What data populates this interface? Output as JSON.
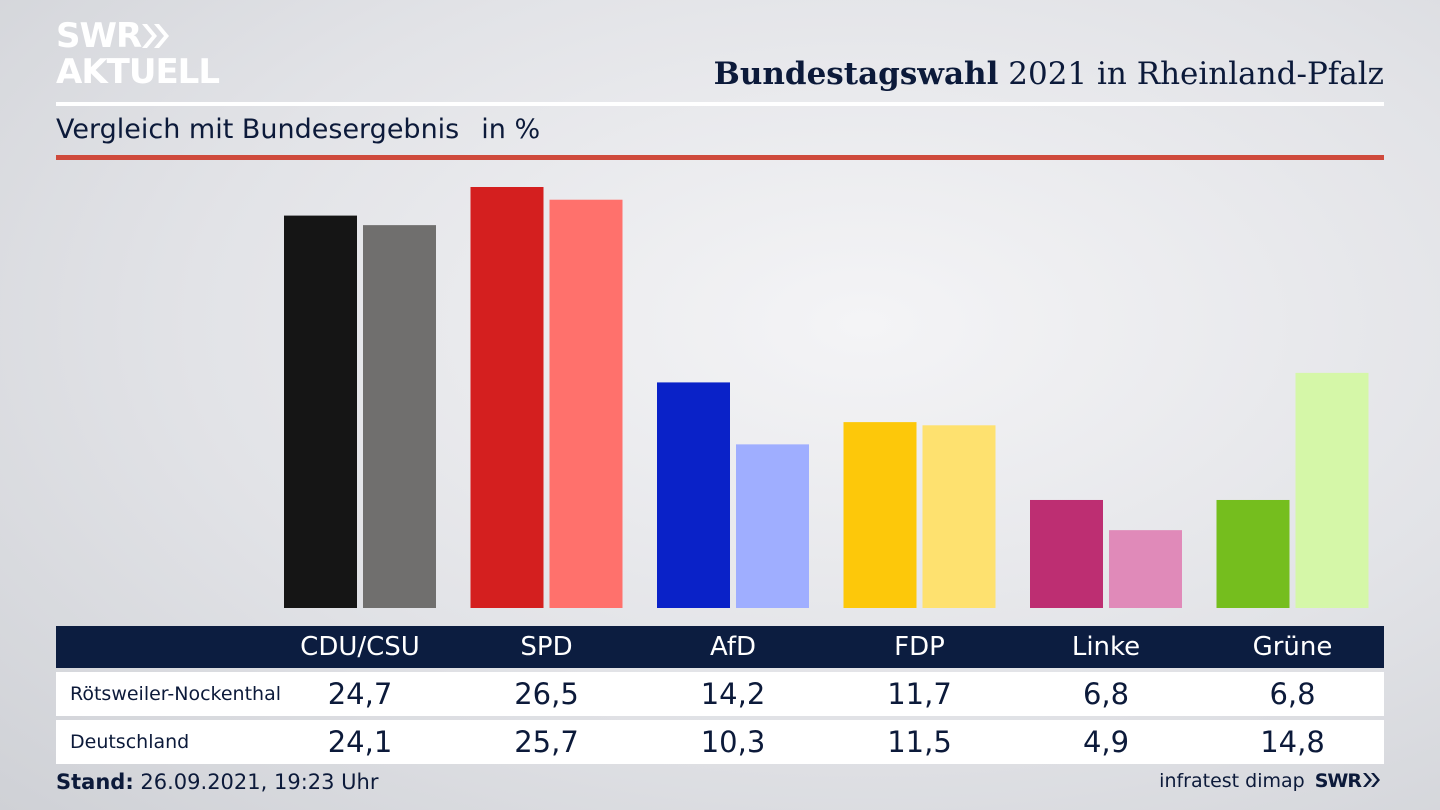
{
  "header": {
    "logo_line1": "SWR",
    "logo_line2": "AKTUELL",
    "title_bold": "Bundestagswahl",
    "title_rest": " 2021 in Rheinland-Pfalz",
    "subtitle": "Vergleich mit Bundesergebnis",
    "unit": "in %"
  },
  "colors": {
    "header_bar": "#0c1d40",
    "accent_red": "#cf4a3c"
  },
  "chart_data": {
    "type": "bar",
    "title": "Bundestagswahl 2021 in Rheinland-Pfalz",
    "subtitle": "Vergleich mit Bundesergebnis in %",
    "categories": [
      "CDU/CSU",
      "SPD",
      "AfD",
      "FDP",
      "Linke",
      "Grüne"
    ],
    "series": [
      {
        "name": "Rötsweiler-Nockenthal",
        "values": [
          24.7,
          26.5,
          14.2,
          11.7,
          6.8,
          6.8
        ],
        "colors": [
          "#151515",
          "#d41f1f",
          "#0a22c8",
          "#fdc80a",
          "#bd2e72",
          "#75be1e"
        ]
      },
      {
        "name": "Deutschland",
        "values": [
          24.1,
          25.7,
          10.3,
          11.5,
          4.9,
          14.8
        ],
        "colors": [
          "#706f6e",
          "#ff716c",
          "#9faeff",
          "#fee16f",
          "#e08ab9",
          "#d5f7a8"
        ]
      }
    ],
    "value_labels": [
      [
        "24,7",
        "26,5",
        "14,2",
        "11,7",
        "6,8",
        "6,8"
      ],
      [
        "24,1",
        "25,7",
        "10,3",
        "11,5",
        "4,9",
        "14,8"
      ]
    ],
    "ylim": [
      0,
      28
    ],
    "xlabel": "",
    "ylabel": ""
  },
  "footer": {
    "stand_label": "Stand:",
    "stand_value": " 26.09.2021, 19:23 Uhr",
    "source": "infratest dimap",
    "swr": "SWR"
  }
}
